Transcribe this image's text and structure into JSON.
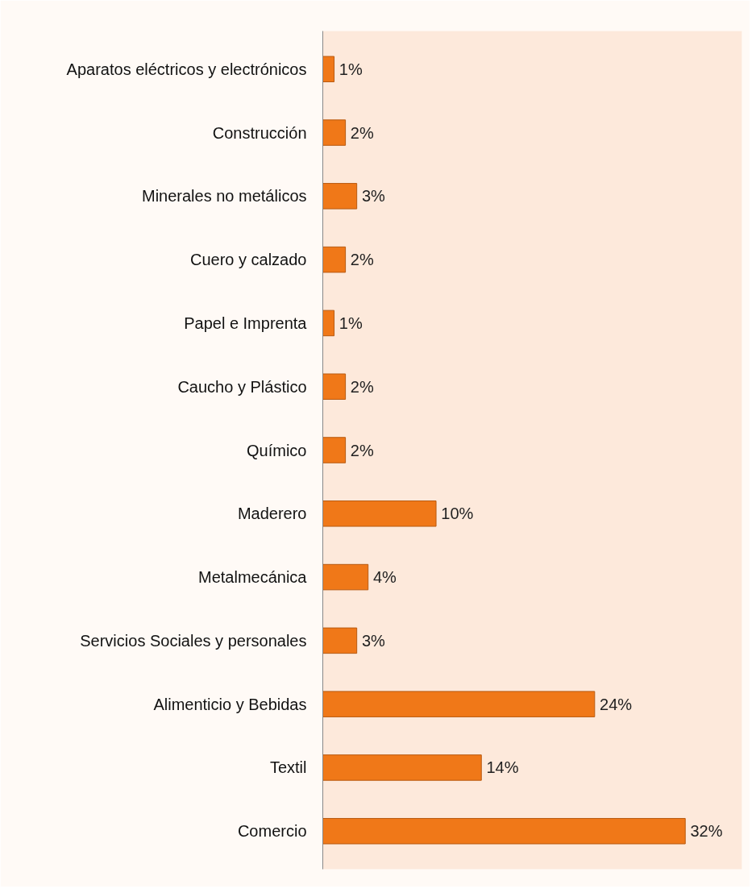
{
  "chart_data": {
    "type": "bar",
    "orientation": "horizontal",
    "categories": [
      "Aparatos eléctricos y electrónicos",
      "Construcción",
      "Minerales no metálicos",
      "Cuero y calzado",
      "Papel e Imprenta",
      "Caucho y Plástico",
      "Químico",
      "Maderero",
      "Metalmecánica",
      "Servicios Sociales y personales",
      "Alimenticio y Bebidas",
      "Textil",
      "Comercio"
    ],
    "values": [
      1,
      2,
      3,
      2,
      1,
      2,
      2,
      10,
      4,
      3,
      24,
      14,
      32
    ],
    "value_labels": [
      "1%",
      "2%",
      "3%",
      "2%",
      "1%",
      "2%",
      "2%",
      "10%",
      "4%",
      "3%",
      "24%",
      "14%",
      "32%"
    ],
    "color": "#f07818",
    "xlim": [
      0,
      37
    ],
    "tick_labels": "y",
    "grid": false
  }
}
